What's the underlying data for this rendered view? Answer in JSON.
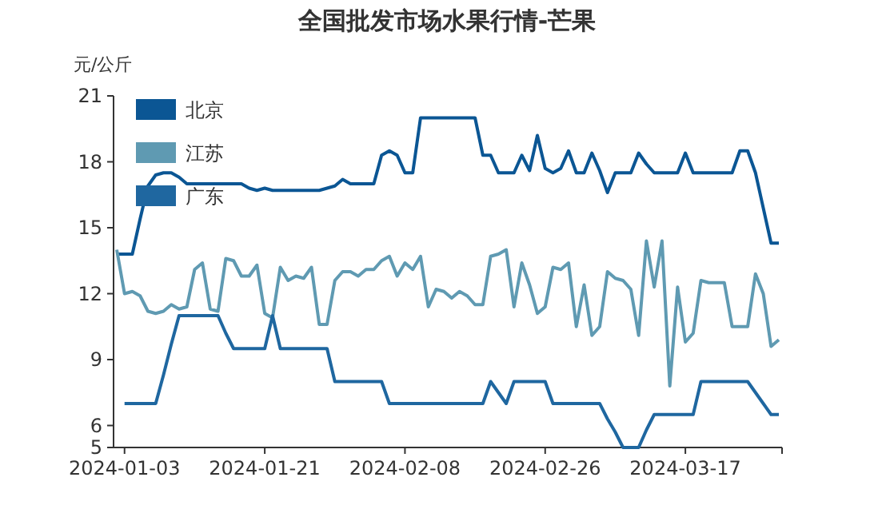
{
  "chart_data": {
    "type": "line",
    "title": "全国批发市场水果行情-芒果",
    "ylabel": "元/公斤",
    "categories": [
      null,
      "2024-01-03",
      null,
      null,
      null,
      null,
      null,
      null,
      null,
      null,
      null,
      null,
      null,
      null,
      null,
      null,
      null,
      null,
      null,
      "2024-01-21",
      null,
      null,
      null,
      null,
      null,
      null,
      null,
      null,
      null,
      null,
      null,
      null,
      null,
      null,
      null,
      null,
      null,
      "2024-02-08",
      null,
      null,
      null,
      null,
      null,
      null,
      null,
      null,
      null,
      null,
      null,
      null,
      null,
      null,
      null,
      null,
      null,
      "2024-02-26",
      null,
      null,
      null,
      null,
      null,
      null,
      null,
      null,
      null,
      null,
      null,
      null,
      null,
      null,
      null,
      null,
      null,
      "2024-03-17",
      null,
      null,
      null,
      null,
      null,
      null,
      null,
      null,
      null,
      null,
      null,
      null
    ],
    "series": [
      {
        "name": "北京",
        "color": "#0b5694",
        "values": [
          13.8,
          13.8,
          13.8,
          15.4,
          16.9,
          17.4,
          17.5,
          17.5,
          17.3,
          17.0,
          17.0,
          17.0,
          17.0,
          17.0,
          17.0,
          17.0,
          17.0,
          16.8,
          16.7,
          16.8,
          16.7,
          16.7,
          16.7,
          16.7,
          16.7,
          16.7,
          16.7,
          16.8,
          16.9,
          17.2,
          17.0,
          17.0,
          17.0,
          17.0,
          18.3,
          18.5,
          18.3,
          17.5,
          17.5,
          20.0,
          20.0,
          20.0,
          20.0,
          20.0,
          20.0,
          20.0,
          20.0,
          18.3,
          18.3,
          17.5,
          17.5,
          17.5,
          18.3,
          17.6,
          19.2,
          17.7,
          17.5,
          17.7,
          18.5,
          17.5,
          17.5,
          18.4,
          17.6,
          16.6,
          17.5,
          17.5,
          17.5,
          18.4,
          17.9,
          17.5,
          17.5,
          17.5,
          17.5,
          18.4,
          17.5,
          17.5,
          17.5,
          17.5,
          17.5,
          17.5,
          18.5,
          18.5,
          17.5,
          15.9,
          14.3,
          14.3
        ]
      },
      {
        "name": "江苏",
        "color": "#5f9ab2",
        "values": [
          14.0,
          12.0,
          12.1,
          11.9,
          11.2,
          11.1,
          11.2,
          11.5,
          11.3,
          11.4,
          13.1,
          13.4,
          11.3,
          11.2,
          13.6,
          13.5,
          12.8,
          12.8,
          13.3,
          11.1,
          10.9,
          13.2,
          12.6,
          12.8,
          12.7,
          13.2,
          10.6,
          10.6,
          12.6,
          13.0,
          13.0,
          12.8,
          13.1,
          13.1,
          13.5,
          13.7,
          12.8,
          13.4,
          13.1,
          13.7,
          11.4,
          12.2,
          12.1,
          11.8,
          12.1,
          11.9,
          11.5,
          11.5,
          13.7,
          13.8,
          14.0,
          11.4,
          13.4,
          12.4,
          11.1,
          11.4,
          13.2,
          13.1,
          13.4,
          10.5,
          12.4,
          10.1,
          10.5,
          13.0,
          12.7,
          12.6,
          12.2,
          10.1,
          14.4,
          12.3,
          14.4,
          7.8,
          12.3,
          9.8,
          10.2,
          12.6,
          12.5,
          12.5,
          12.5,
          10.5,
          10.5,
          10.5,
          12.9,
          12.0,
          9.6,
          9.9
        ]
      },
      {
        "name": "广东",
        "color": "#1f67a0",
        "values": [
          null,
          7.0,
          7.0,
          7.0,
          7.0,
          7.0,
          8.3,
          9.7,
          11.0,
          11.0,
          11.0,
          11.0,
          11.0,
          11.0,
          10.2,
          9.5,
          9.5,
          9.5,
          9.5,
          9.5,
          11.0,
          9.5,
          9.5,
          9.5,
          9.5,
          9.5,
          9.5,
          9.5,
          8.0,
          8.0,
          8.0,
          8.0,
          8.0,
          8.0,
          8.0,
          7.0,
          7.0,
          7.0,
          7.0,
          7.0,
          7.0,
          7.0,
          7.0,
          7.0,
          7.0,
          7.0,
          7.0,
          7.0,
          8.0,
          7.5,
          7.0,
          8.0,
          8.0,
          8.0,
          8.0,
          8.0,
          7.0,
          7.0,
          7.0,
          7.0,
          7.0,
          7.0,
          7.0,
          6.3,
          5.7,
          5.0,
          5.0,
          5.0,
          5.8,
          6.5,
          6.5,
          6.5,
          6.5,
          6.5,
          6.5,
          8.0,
          8.0,
          8.0,
          8.0,
          8.0,
          8.0,
          8.0,
          7.5,
          7.0,
          6.5,
          6.5
        ]
      }
    ],
    "ylim": [
      5,
      21
    ],
    "yticks": [
      5,
      6,
      9,
      12,
      15,
      18,
      21
    ],
    "grid": false,
    "legend": "top left",
    "line_style": "solid",
    "marker": "none"
  }
}
